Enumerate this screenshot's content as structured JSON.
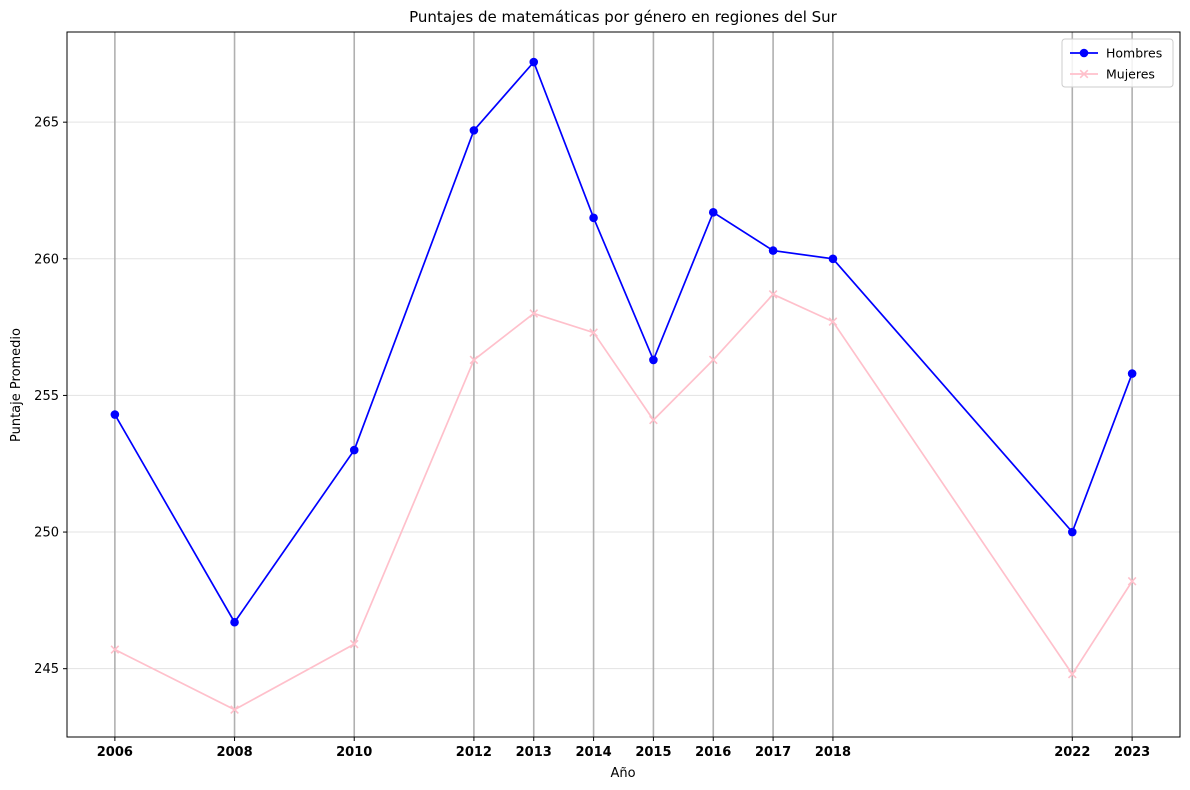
{
  "chart_data": {
    "type": "line",
    "title": "Puntajes de matemáticas por género en regiones del Sur",
    "xlabel": "Año",
    "ylabel": "Puntaje Promedio",
    "x": [
      2006,
      2008,
      2010,
      2012,
      2013,
      2014,
      2015,
      2016,
      2017,
      2018,
      2022,
      2023
    ],
    "xlim": [
      2005.2,
      2023.8
    ],
    "ylim": [
      242.5,
      268.3
    ],
    "yticks": [
      245,
      250,
      255,
      260,
      265
    ],
    "grid": {
      "vertical": true,
      "horizontal": true
    },
    "legend_position": "top-right",
    "series": [
      {
        "name": "Hombres",
        "color": "#0000ff",
        "marker": "circle",
        "values": [
          254.3,
          246.7,
          253.0,
          264.7,
          267.2,
          261.5,
          256.3,
          261.7,
          260.3,
          260.0,
          250.0,
          255.8
        ]
      },
      {
        "name": "Mujeres",
        "color": "#ffc0cb",
        "marker": "x",
        "values": [
          245.7,
          243.5,
          245.9,
          256.3,
          258.0,
          257.3,
          254.1,
          256.3,
          258.7,
          257.7,
          244.8,
          248.2
        ]
      }
    ]
  }
}
